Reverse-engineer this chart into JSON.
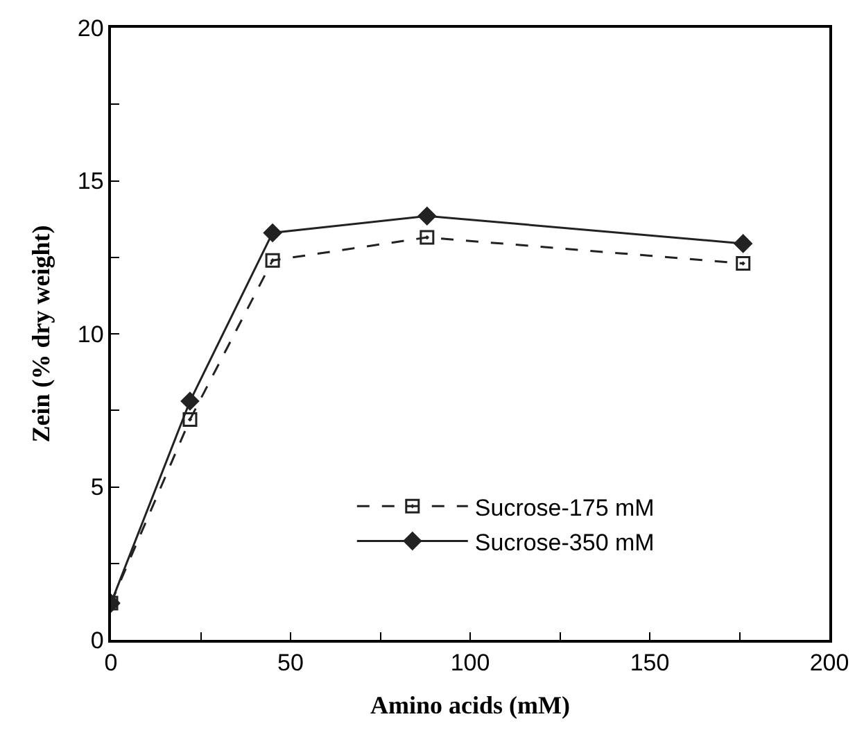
{
  "chart_data": {
    "type": "line",
    "xlabel": "Amino acids (mM)",
    "ylabel": "Zein (% dry weight)",
    "xlim": [
      0,
      200
    ],
    "ylim": [
      0,
      20
    ],
    "xticks": [
      0,
      {
        "value": 25,
        "label": null
      },
      50,
      {
        "value": 75,
        "label": null
      },
      100,
      {
        "value": 125,
        "label": null
      },
      150,
      {
        "value": 175,
        "label": null
      },
      200
    ],
    "yticks": [
      0,
      {
        "value": 2.5,
        "label": null
      },
      5,
      {
        "value": 7.5,
        "label": null
      },
      10,
      {
        "value": 12.5,
        "label": null
      },
      15,
      {
        "value": 17.5,
        "label": null
      },
      20
    ],
    "x": [
      0,
      22,
      45,
      88,
      176
    ],
    "series": [
      {
        "name": "Sucrose-175 mM",
        "color": "#222222",
        "values": [
          1.2,
          7.2,
          12.4,
          13.15,
          12.3
        ],
        "marker": "square",
        "line_style": "dashed"
      },
      {
        "name": "Sucrose-350 mM",
        "color": "#222222",
        "values": [
          1.2,
          7.8,
          13.3,
          13.85,
          12.95
        ],
        "marker": "diamond",
        "line_style": "solid"
      }
    ],
    "legend": "bottom"
  }
}
